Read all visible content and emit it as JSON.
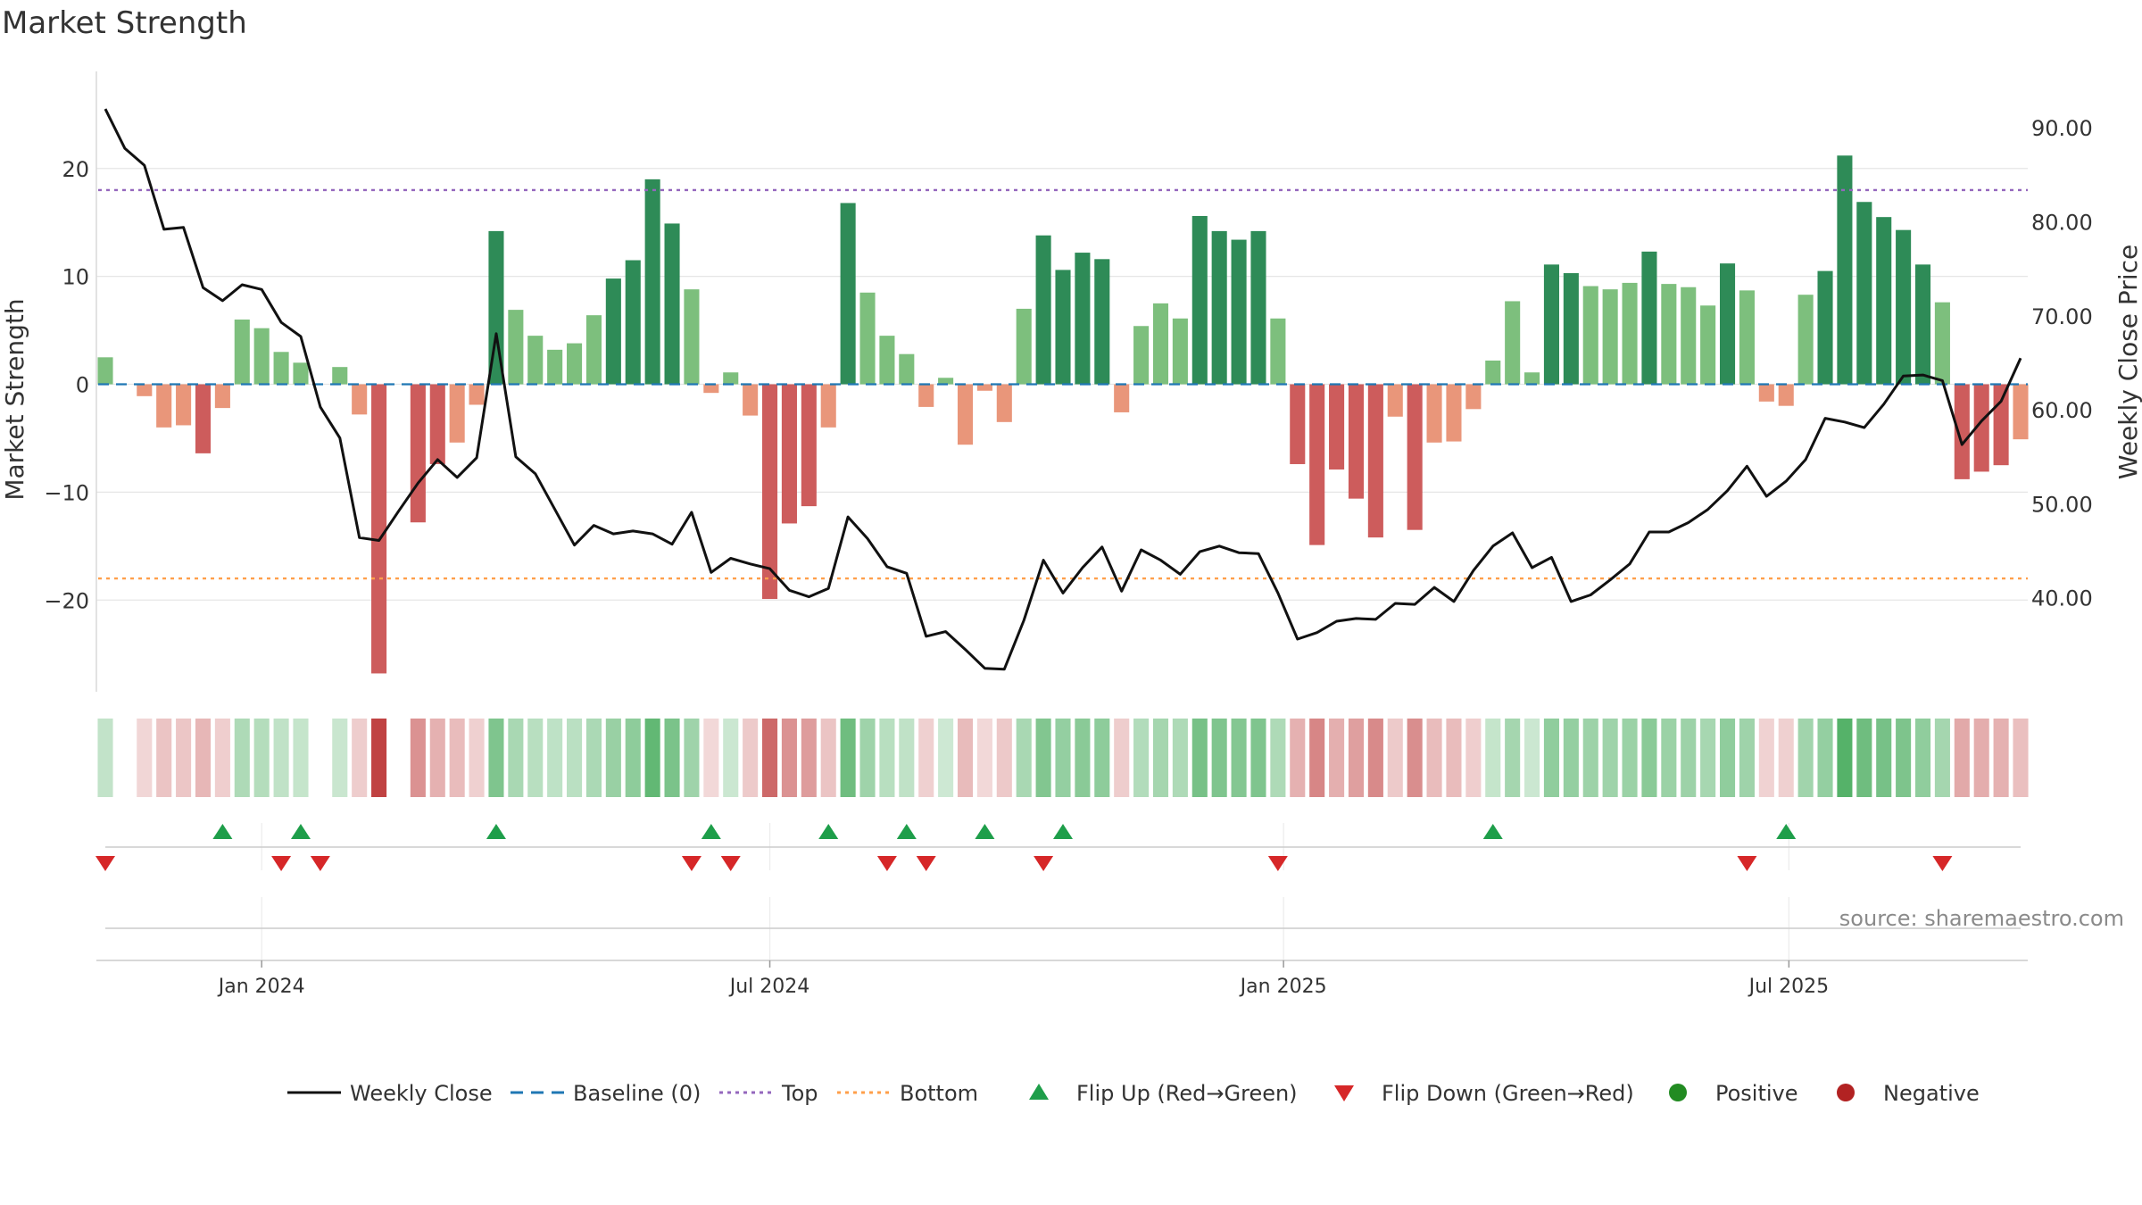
{
  "title": "Market Strength",
  "source": "source: sharemaestro.com",
  "colors": {
    "strong_pos": "#2e8b57",
    "weak_pos": "#7dbf7d",
    "strong_neg": "#cd5c5c",
    "weak_neg": "#e9967a",
    "close_line": "#111111",
    "baseline": "#1f77b4",
    "top": "#9467bd",
    "bottom": "#ff9f4a",
    "flip_up": "#1e9e4a",
    "flip_down": "#d62728",
    "positive": "#228b22",
    "negative": "#b22222"
  },
  "chart_data": {
    "type": "bar",
    "x": [
      "2023-11-06",
      "2023-11-13",
      "2023-11-20",
      "2023-11-27",
      "2023-12-04",
      "2023-12-11",
      "2023-12-18",
      "2023-12-25",
      "2024-01-01",
      "2024-01-08",
      "2024-01-15",
      "2024-01-22",
      "2024-01-29",
      "2024-02-05",
      "2024-02-12",
      "2024-02-19",
      "2024-02-26",
      "2024-03-04",
      "2024-03-11",
      "2024-03-18",
      "2024-03-25",
      "2024-04-01",
      "2024-04-08",
      "2024-04-15",
      "2024-04-22",
      "2024-04-29",
      "2024-05-06",
      "2024-05-13",
      "2024-05-20",
      "2024-05-27",
      "2024-06-03",
      "2024-06-10",
      "2024-06-17",
      "2024-06-24",
      "2024-07-01",
      "2024-07-08",
      "2024-07-15",
      "2024-07-22",
      "2024-07-29",
      "2024-08-05",
      "2024-08-12",
      "2024-08-19",
      "2024-08-26",
      "2024-09-02",
      "2024-09-09",
      "2024-09-16",
      "2024-09-23",
      "2024-09-30",
      "2024-10-07",
      "2024-10-14",
      "2024-10-21",
      "2024-10-28",
      "2024-11-04",
      "2024-11-11",
      "2024-11-18",
      "2024-11-25",
      "2024-12-02",
      "2024-12-09",
      "2024-12-16",
      "2024-12-23",
      "2024-12-30",
      "2025-01-06",
      "2025-01-13",
      "2025-01-20",
      "2025-01-27",
      "2025-02-03",
      "2025-02-10",
      "2025-02-17",
      "2025-02-24",
      "2025-03-03",
      "2025-03-10",
      "2025-03-17",
      "2025-03-24",
      "2025-03-31",
      "2025-04-07",
      "2025-04-14",
      "2025-04-21",
      "2025-04-28",
      "2025-05-05",
      "2025-05-12",
      "2025-05-19",
      "2025-05-26",
      "2025-06-02",
      "2025-06-09",
      "2025-06-16",
      "2025-06-23",
      "2025-06-30",
      "2025-07-07",
      "2025-07-14",
      "2025-07-21",
      "2025-07-28",
      "2025-08-04",
      "2025-08-11",
      "2025-08-18",
      "2025-08-25",
      "2025-09-01",
      "2025-09-08",
      "2025-09-15",
      "2025-09-22"
    ],
    "series": [
      {
        "name": "",
        "axis": "left",
        "values": [
          2.5,
          0,
          -1.1,
          -4.0,
          -3.8,
          -6.4,
          -2.2,
          6.0,
          5.2,
          3.0,
          2.0,
          0,
          1.6,
          -2.8,
          -26.8,
          0,
          -12.8,
          -7.4,
          -5.4,
          -1.9,
          14.2,
          6.9,
          4.5,
          3.2,
          3.8,
          6.4,
          9.8,
          11.5,
          19.0,
          14.9,
          8.8,
          -0.8,
          1.1,
          -2.9,
          -19.9,
          -12.9,
          -11.3,
          -4.0,
          16.8,
          8.5,
          4.5,
          2.8,
          -2.1,
          0.6,
          -5.6,
          -0.6,
          -3.5,
          7.0,
          13.8,
          10.6,
          12.2,
          11.6,
          -2.6,
          5.4,
          7.5,
          6.1,
          15.6,
          14.2,
          13.4,
          14.2,
          6.1,
          -7.4,
          -14.9,
          -7.9,
          -10.6,
          -14.2,
          -3.0,
          -13.5,
          -5.4,
          -5.3,
          -2.3,
          2.2,
          7.7,
          1.1,
          11.1,
          10.3,
          9.1,
          8.8,
          9.4,
          12.3,
          9.3,
          9.0,
          7.3,
          11.2,
          8.7,
          -1.6,
          -2.0,
          8.3,
          10.5,
          21.2,
          16.9,
          15.5,
          14.3,
          11.1,
          7.6,
          -8.8,
          -8.1,
          -7.5,
          -5.1
        ]
      },
      {
        "name": "Weekly Close",
        "axis": "right",
        "values": [
          92.0,
          87.8,
          86.0,
          79.2,
          79.4,
          73.0,
          71.6,
          73.3,
          72.8,
          69.3,
          67.8,
          60.3,
          57.0,
          46.4,
          46.1,
          49.2,
          52.2,
          54.7,
          52.8,
          54.9,
          68.1,
          55.0,
          53.2,
          49.4,
          45.6,
          47.7,
          46.8,
          47.1,
          46.8,
          45.7,
          49.1,
          42.7,
          44.2,
          43.6,
          43.1,
          40.8,
          40.1,
          41.0,
          48.6,
          46.3,
          43.3,
          42.6,
          35.9,
          36.4,
          34.5,
          32.5,
          32.4,
          37.6,
          44.0,
          40.5,
          43.2,
          45.4,
          40.7,
          45.1,
          44.0,
          42.5,
          44.9,
          45.5,
          44.8,
          44.7,
          40.5,
          35.6,
          36.3,
          37.5,
          37.8,
          37.7,
          39.4,
          39.3,
          41.1,
          39.6,
          42.9,
          45.5,
          46.9,
          43.2,
          44.3,
          39.6,
          40.3,
          41.9,
          43.6,
          47.0,
          47.0,
          48.0,
          49.4,
          51.4,
          54.0,
          50.8,
          52.4,
          54.7,
          59.1,
          58.7,
          58.1,
          60.6,
          63.6,
          63.7,
          63.1,
          56.3,
          58.8,
          60.9,
          65.5
        ]
      }
    ],
    "flip_up_dates": [
      "2023-12-18",
      "2024-01-15",
      "2024-03-25",
      "2024-06-10",
      "2024-07-22",
      "2024-08-19",
      "2024-09-16",
      "2024-10-14",
      "2025-03-17",
      "2025-06-30"
    ],
    "flip_down_dates": [
      "2023-11-06",
      "2024-01-08",
      "2024-01-22",
      "2024-06-03",
      "2024-06-17",
      "2024-08-12",
      "2024-08-26",
      "2024-10-07",
      "2024-12-30",
      "2025-06-16",
      "2025-08-25"
    ],
    "left_axis": {
      "label": "Market Strength",
      "ticks": [
        -20,
        -10,
        0,
        10,
        20
      ],
      "range": [
        -28.5,
        29
      ]
    },
    "right_axis": {
      "label": "Weekly Close Price",
      "ticks": [
        "40.00",
        "50.00",
        "60.00",
        "70.00",
        "80.00",
        "90.00"
      ],
      "range": [
        30,
        96
      ]
    },
    "x_ticks": [
      {
        "date": "2024-01-01",
        "label": "Jan 2024"
      },
      {
        "date": "2024-07-01",
        "label": "Jul 2024"
      },
      {
        "date": "2025-01-01",
        "label": "Jan 2025"
      },
      {
        "date": "2025-07-01",
        "label": "Jul 2025"
      }
    ],
    "reference_lines": [
      {
        "name": "Baseline (0)",
        "value": 0
      },
      {
        "name": "Top",
        "value": 18
      },
      {
        "name": "Bottom",
        "value": -18
      }
    ],
    "grid": true,
    "legend_position": "bottom"
  },
  "legend": [
    {
      "label": "Weekly Close",
      "kind": "line-solid",
      "color": "#111111"
    },
    {
      "label": "Baseline (0)",
      "kind": "line-dash",
      "color": "#1f77b4"
    },
    {
      "label": "Top",
      "kind": "line-dot",
      "color": "#9467bd"
    },
    {
      "label": "Bottom",
      "kind": "line-dot",
      "color": "#ff9f4a"
    },
    {
      "label": "Flip Up (Red→Green)",
      "kind": "triangle-up",
      "color": "#1e9e4a"
    },
    {
      "label": "Flip Down (Green→Red)",
      "kind": "triangle-down",
      "color": "#d62728"
    },
    {
      "label": "Positive",
      "kind": "dot",
      "color": "#228b22"
    },
    {
      "label": "Negative",
      "kind": "dot",
      "color": "#b22222"
    }
  ]
}
